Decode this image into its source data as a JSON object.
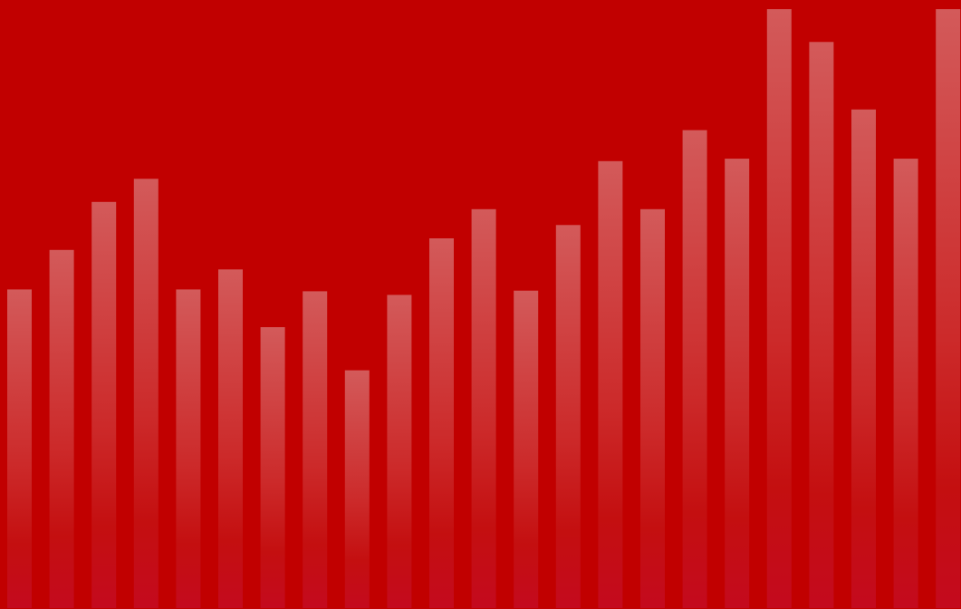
{
  "chart_data": {
    "type": "bar",
    "title": "",
    "xlabel": "",
    "ylabel": "",
    "ylim": [
      0,
      100
    ],
    "grid": false,
    "legend": "none",
    "values": [
      52.4,
      58.9,
      66.8,
      70.6,
      52.4,
      55.7,
      46.2,
      52.1,
      39.1,
      51.5,
      60.8,
      65.6,
      52.2,
      63.0,
      73.5,
      65.6,
      78.6,
      73.9,
      98.5,
      93.1,
      82.0,
      73.9,
      98.5
    ],
    "colors": {
      "background": "#c10000",
      "bar_top": "#d35a5a",
      "bar_bottom": "#c40a1e"
    }
  }
}
